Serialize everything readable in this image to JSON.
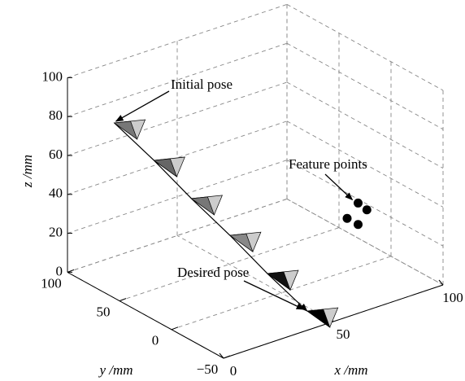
{
  "chart_data": {
    "type": "pose3d",
    "poses": {
      "x": [
        0,
        10,
        19,
        29,
        38,
        48
      ],
      "y": [
        55,
        38,
        21,
        5,
        -12,
        -29
      ],
      "z": [
        90,
        72,
        54,
        36,
        18,
        0
      ]
    },
    "features": {
      "x": [
        85,
        89,
        80,
        85
      ],
      "y": [
        0,
        0,
        0,
        0
      ],
      "z": [
        33,
        28,
        27,
        22
      ]
    },
    "xlabel": "x /mm",
    "ylabel": "y /mm",
    "zlabel": "z /mm",
    "xlim": [
      0,
      100
    ],
    "ylim": [
      -50,
      100
    ],
    "zlim": [
      0,
      100
    ],
    "xticks": [
      0,
      50,
      100
    ],
    "yticks": [
      {
        "value": -50,
        "label": "−50"
      },
      0,
      50,
      100
    ],
    "zticks": [
      0,
      20,
      40,
      60,
      80,
      100
    ],
    "annotations": [
      {
        "text": "Initial pose"
      },
      {
        "text": "Feature points"
      },
      {
        "text": "Desired pose"
      }
    ],
    "grid": true
  }
}
